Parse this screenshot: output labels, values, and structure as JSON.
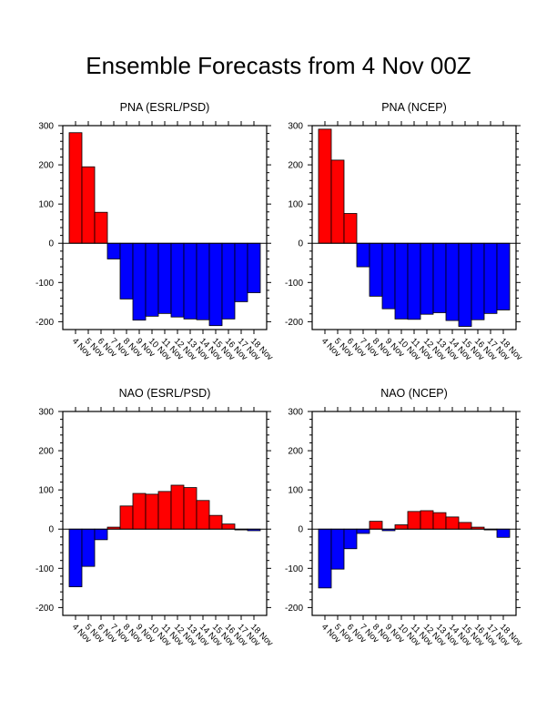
{
  "title": "Ensemble Forecasts from 4 Nov 00Z",
  "colors": {
    "positive": "#ff0000",
    "negative": "#0000ff",
    "outline": "#000000"
  },
  "chart_data": [
    {
      "type": "bar",
      "title": "PNA (ESRL/PSD)",
      "categories": [
        "4 Nov",
        "5 Nov",
        "6 Nov",
        "7 Nov",
        "8 Nov",
        "9 Nov",
        "10 Nov",
        "11 Nov",
        "12 Nov",
        "13 Nov",
        "14 Nov",
        "15 Nov",
        "16 Nov",
        "17 Nov",
        "18 Nov"
      ],
      "values": [
        282,
        195,
        79,
        -40,
        -142,
        -196,
        -186,
        -179,
        -188,
        -193,
        -195,
        -210,
        -193,
        -149,
        -126
      ],
      "ylim": [
        -220,
        300
      ],
      "yticks": [
        "300",
        "200",
        "100",
        "0",
        "-100",
        "-200"
      ],
      "grid": false
    },
    {
      "type": "bar",
      "title": "PNA (NCEP)",
      "categories": [
        "4 Nov",
        "5 Nov",
        "6 Nov",
        "7 Nov",
        "8 Nov",
        "9 Nov",
        "10 Nov",
        "11 Nov",
        "12 Nov",
        "13 Nov",
        "14 Nov",
        "15 Nov",
        "16 Nov",
        "17 Nov",
        "18 Nov"
      ],
      "values": [
        291,
        212,
        76,
        -60,
        -135,
        -167,
        -193,
        -194,
        -181,
        -177,
        -197,
        -212,
        -195,
        -179,
        -170
      ],
      "ylim": [
        -220,
        300
      ],
      "yticks": [
        "300",
        "200",
        "100",
        "0",
        "-100",
        "-200"
      ],
      "grid": false
    },
    {
      "type": "bar",
      "title": "NAO (ESRL/PSD)",
      "categories": [
        "4 Nov",
        "5 Nov",
        "6 Nov",
        "7 Nov",
        "8 Nov",
        "9 Nov",
        "10 Nov",
        "11 Nov",
        "12 Nov",
        "13 Nov",
        "14 Nov",
        "15 Nov",
        "16 Nov",
        "17 Nov",
        "18 Nov"
      ],
      "values": [
        -147,
        -95,
        -27,
        5,
        59,
        91,
        89,
        96,
        112,
        106,
        73,
        35,
        13,
        -2,
        -4
      ],
      "ylim": [
        -220,
        300
      ],
      "yticks": [
        "300",
        "200",
        "100",
        "0",
        "-100",
        "-200"
      ],
      "grid": false
    },
    {
      "type": "bar",
      "title": "NAO (NCEP)",
      "categories": [
        "4 Nov",
        "5 Nov",
        "6 Nov",
        "7 Nov",
        "8 Nov",
        "9 Nov",
        "10 Nov",
        "11 Nov",
        "12 Nov",
        "13 Nov",
        "14 Nov",
        "15 Nov",
        "16 Nov",
        "17 Nov",
        "18 Nov"
      ],
      "values": [
        -150,
        -102,
        -50,
        -11,
        20,
        -4,
        11,
        45,
        47,
        42,
        31,
        17,
        5,
        -2,
        -21
      ],
      "ylim": [
        -220,
        300
      ],
      "yticks": [
        "300",
        "200",
        "100",
        "0",
        "-100",
        "-200"
      ],
      "grid": false
    }
  ]
}
